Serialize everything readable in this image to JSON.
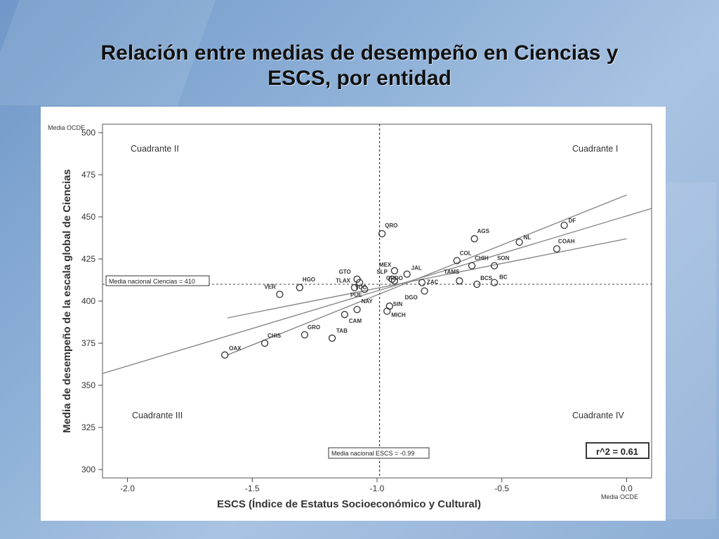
{
  "slide": {
    "title_line1": "Relación entre medias de desempeño en Ciencias y",
    "title_line2": "ESCS, por entidad"
  },
  "chart_data": {
    "type": "scatter",
    "xlabel": "ESCS (Índice de Estatus Socioeconómico y Cultural)",
    "ylabel": "Media de desempeño de la escala global de Ciencias",
    "xlim": [
      -2.1,
      0.1
    ],
    "ylim": [
      295,
      505
    ],
    "x_ticks": [
      -2.0,
      -1.5,
      -1.0,
      -0.5,
      0.0
    ],
    "x_tick_labels": [
      "-2.0",
      "-1.5",
      "-1.0",
      "-0.5",
      "0.0"
    ],
    "y_ticks": [
      300,
      325,
      350,
      375,
      400,
      425,
      450,
      475,
      500
    ],
    "y_tick_labels": [
      "300",
      "325",
      "350",
      "375",
      "400",
      "425",
      "450",
      "475",
      "500"
    ],
    "x_axis_caption": "Media OCDE",
    "y_axis_caption": "Media OCDE",
    "national_mean_science": 410,
    "national_mean_science_label": "Media nacional Ciencias = 410",
    "national_mean_escs": -0.99,
    "national_mean_escs_label": "Media nacional ESCS = -0.99",
    "r2_label": "r^2 = 0.61",
    "quadrants": [
      "Cuadrante I",
      "Cuadrante II",
      "Cuadrante III",
      "Cuadrante IV"
    ],
    "regression": {
      "x": [
        -2.1,
        0.1
      ],
      "y": [
        357,
        455
      ]
    },
    "ci_upper": {
      "x": [
        -1.6,
        0.0
      ],
      "y": [
        368,
        463
      ]
    },
    "ci_lower": {
      "x": [
        -1.6,
        0.0
      ],
      "y": [
        390,
        437
      ]
    },
    "points": [
      {
        "label": "DF",
        "x": -0.25,
        "y": 445
      },
      {
        "label": "NL",
        "x": -0.43,
        "y": 435
      },
      {
        "label": "COAH",
        "x": -0.28,
        "y": 431
      },
      {
        "label": "AGS",
        "x": -0.61,
        "y": 437
      },
      {
        "label": "QRO",
        "x": -0.98,
        "y": 440
      },
      {
        "label": "COL",
        "x": -0.68,
        "y": 424
      },
      {
        "label": "CHIH",
        "x": -0.62,
        "y": 421
      },
      {
        "label": "SON",
        "x": -0.53,
        "y": 421
      },
      {
        "label": "TAMS",
        "x": -0.67,
        "y": 412
      },
      {
        "label": "BCS",
        "x": -0.6,
        "y": 410
      },
      {
        "label": "BC",
        "x": -0.53,
        "y": 411
      },
      {
        "label": "MEX",
        "x": -0.93,
        "y": 418
      },
      {
        "label": "JAL",
        "x": -0.88,
        "y": 416
      },
      {
        "label": "SLP",
        "x": -0.94,
        "y": 413
      },
      {
        "label": "GTO",
        "x": -1.08,
        "y": 413
      },
      {
        "label": "TLAX",
        "x": -1.07,
        "y": 411
      },
      {
        "label": "QRDO",
        "x": -0.93,
        "y": 412
      },
      {
        "label": "YUC",
        "x": -1.05,
        "y": 407
      },
      {
        "label": "ZAC",
        "x": -0.82,
        "y": 411
      },
      {
        "label": "DGO",
        "x": -0.81,
        "y": 406
      },
      {
        "label": "PUE",
        "x": -1.09,
        "y": 408
      },
      {
        "label": "HGO",
        "x": -1.31,
        "y": 408
      },
      {
        "label": "VER",
        "x": -1.39,
        "y": 404
      },
      {
        "label": "NAY",
        "x": -1.08,
        "y": 395
      },
      {
        "label": "SIN",
        "x": -0.95,
        "y": 397
      },
      {
        "label": "MICH",
        "x": -0.96,
        "y": 394
      },
      {
        "label": "CAM",
        "x": -1.13,
        "y": 392
      },
      {
        "label": "GRO",
        "x": -1.29,
        "y": 380
      },
      {
        "label": "TAB",
        "x": -1.18,
        "y": 378
      },
      {
        "label": "CHIS",
        "x": -1.45,
        "y": 375
      },
      {
        "label": "OAX",
        "x": -1.61,
        "y": 368
      }
    ]
  }
}
